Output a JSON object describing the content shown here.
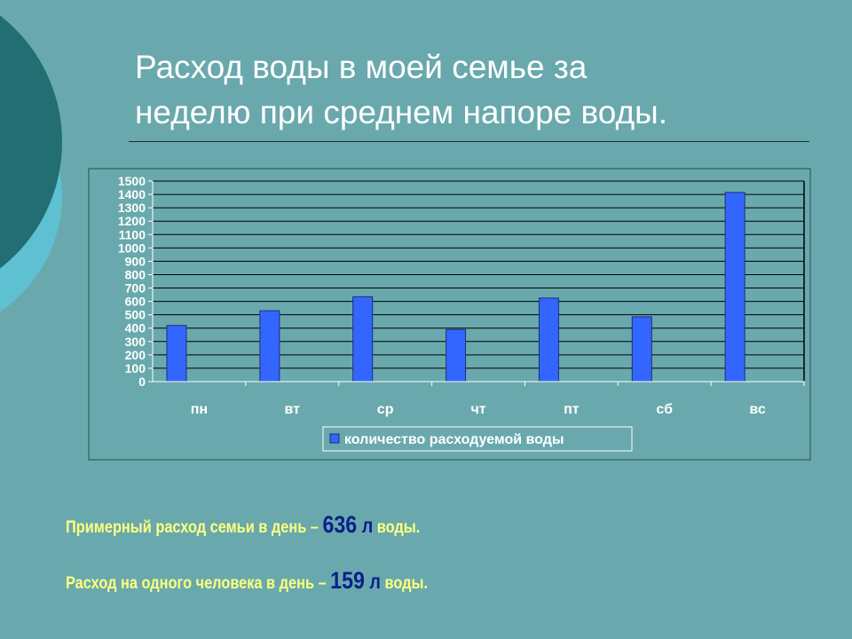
{
  "slide": {
    "title_line1": "Расход воды в моей семье за",
    "title_line2": "неделю при среднем напоре воды."
  },
  "chart_data": {
    "type": "bar",
    "categories": [
      "пн",
      "вт",
      "ср",
      "чт",
      "пт",
      "сб",
      "вс"
    ],
    "series": [
      {
        "name": "количество расходуемой воды",
        "values": [
          420,
          530,
          635,
          390,
          625,
          485,
          1415
        ]
      }
    ],
    "ylim": [
      0,
      1500
    ],
    "yticks": [
      0,
      100,
      200,
      300,
      400,
      500,
      600,
      700,
      800,
      900,
      1000,
      1100,
      1200,
      1300,
      1400,
      1500
    ],
    "grid": true,
    "legend_position": "bottom",
    "bar_color": "#3366ff"
  },
  "notes": [
    {
      "prefix": "Примерный расход семьи в день – ",
      "value": "636",
      "unit": " л",
      "suffix": " воды."
    },
    {
      "prefix": "Расход на одного человека в день – ",
      "value": "159",
      "unit": " л",
      "suffix": " воды."
    }
  ],
  "colors": {
    "background": "#69a9ad",
    "title": "#ffffff",
    "note_text": "#ffff80",
    "note_value": "#0b1f8c"
  }
}
